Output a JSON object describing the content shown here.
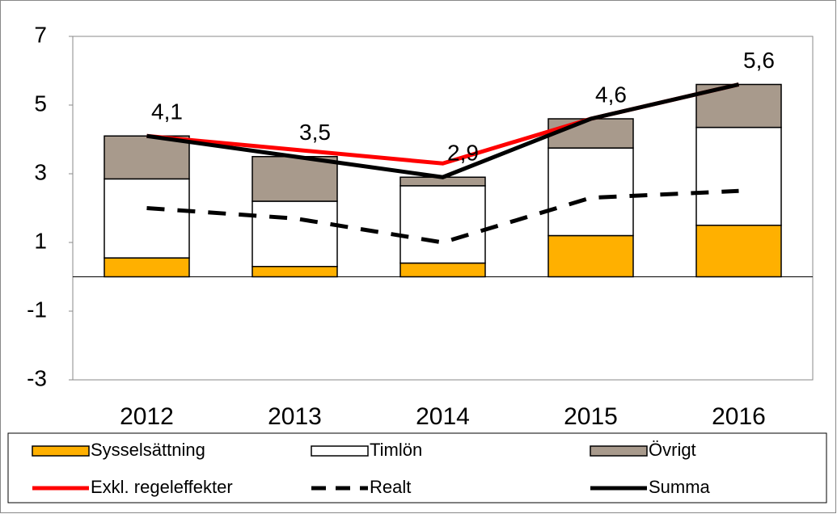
{
  "chart_data": {
    "type": "bar",
    "stacked": true,
    "categories": [
      "2012",
      "2013",
      "2014",
      "2015",
      "2016"
    ],
    "series": [
      {
        "name": "Sysselsättning",
        "type": "bar",
        "color": "#ffb000",
        "values": [
          0.55,
          0.3,
          0.4,
          1.2,
          1.5
        ]
      },
      {
        "name": "Timlön",
        "type": "bar",
        "color": "#ffffff",
        "values": [
          2.3,
          1.9,
          2.25,
          2.55,
          2.85
        ]
      },
      {
        "name": "Övrigt",
        "type": "bar",
        "color": "#a89a8c",
        "values": [
          1.25,
          1.3,
          0.25,
          0.85,
          1.25
        ]
      },
      {
        "name": "Exkl. regeleffekter",
        "type": "line",
        "color": "#ff0000",
        "dashed": false,
        "values": [
          4.1,
          3.7,
          3.3,
          4.6,
          5.6
        ]
      },
      {
        "name": "Realt",
        "type": "line",
        "color": "#000000",
        "dashed": true,
        "values": [
          2.0,
          1.7,
          1.0,
          2.3,
          2.5
        ]
      },
      {
        "name": "Summa",
        "type": "line",
        "color": "#000000",
        "dashed": false,
        "values": [
          4.1,
          3.5,
          2.9,
          4.6,
          5.6
        ],
        "value_labels": [
          "4,1",
          "3,5",
          "2,9",
          "4,6",
          "5,6"
        ]
      }
    ],
    "ylim": [
      -3,
      7
    ],
    "yticks": [
      -3,
      -1,
      1,
      3,
      5,
      7
    ],
    "grid": false
  }
}
